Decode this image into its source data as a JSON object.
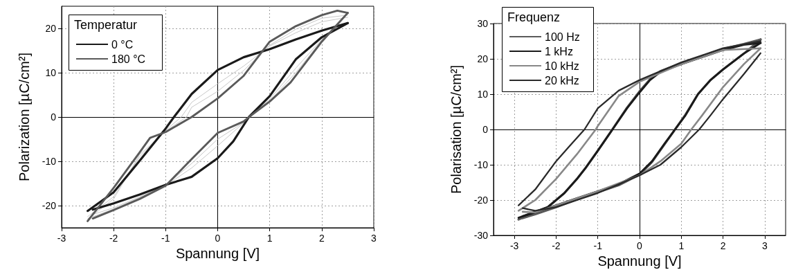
{
  "chart_data": [
    {
      "type": "line",
      "xlabel": "Spannung [V]",
      "ylabel": "Polarization [µC/cm²]",
      "legend_title": "Temperatur",
      "legend": "top left",
      "grid": true,
      "marker": "none",
      "line_style": "solid",
      "xlim": [
        -3,
        3
      ],
      "xticks": [
        -3,
        -2,
        -1,
        0,
        1,
        2,
        3
      ],
      "ylim": [
        -25,
        25
      ],
      "yticks": [
        -20,
        -10,
        0,
        10,
        20
      ],
      "series": [
        {
          "color": "#c8c8c8",
          "x": [
            2.5,
            2,
            1.5,
            1,
            0.5,
            0,
            -0.5,
            -0.7,
            -1,
            -1.5,
            -2,
            -2.5
          ],
          "values": [
            22.5,
            21.5,
            19,
            16,
            11.5,
            7.5,
            3.3,
            0,
            -3,
            -9,
            -18,
            -22.5
          ]
        },
        {
          "color": "#c8c8c8",
          "x": [
            -2.4,
            -2,
            -1.5,
            -1,
            -0.5,
            0,
            0.5,
            0.6,
            1,
            1.5,
            2,
            2.4
          ],
          "values": [
            -22,
            -20.5,
            -18,
            -15.5,
            -11.5,
            -6.5,
            -1.3,
            0,
            4,
            11,
            17.5,
            22
          ]
        },
        {
          "color": "#c8c8c8",
          "x": [
            2.5,
            2,
            1.5,
            1,
            0.5,
            0,
            -0.5,
            -0.6,
            -1,
            -1.5,
            -2,
            -2.5
          ],
          "values": [
            23,
            22.3,
            19.8,
            16.2,
            10.5,
            5.8,
            2.2,
            0,
            -3.2,
            -8.5,
            -18.5,
            -23
          ]
        },
        {
          "color": "#c8c8c8",
          "x": [
            -2.4,
            -2,
            -1.5,
            -1,
            -0.5,
            0,
            0.5,
            0.6,
            1,
            1.5,
            2,
            2.4
          ],
          "values": [
            -22.5,
            -20.8,
            -18.2,
            -15.4,
            -10.5,
            -5,
            -1.2,
            0,
            3.6,
            10,
            17.3,
            22.5
          ]
        },
        {
          "name": "0 °C",
          "color": "#1a1a1a",
          "x": [
            2.5,
            2,
            1.5,
            1,
            0.5,
            0,
            -0.5,
            -0.84,
            -1,
            -1.5,
            -2,
            -2.5
          ],
          "values": [
            21.2,
            19.5,
            17.5,
            15.3,
            13.5,
            10.6,
            5.2,
            0,
            -2.6,
            -9.9,
            -17,
            -21.2
          ]
        },
        {
          "color": "#1a1a1a",
          "x": [
            -2.4,
            -2,
            -1.5,
            -1,
            -0.5,
            0,
            0.3,
            0.6,
            1,
            1.5,
            2,
            2.5
          ],
          "values": [
            -20.9,
            -19.5,
            -17.5,
            -15.3,
            -13.5,
            -9.3,
            -5.5,
            0,
            4.7,
            13,
            18,
            21.2
          ]
        },
        {
          "name": "180 °C",
          "color": "#5a5a5a",
          "x": [
            2.5,
            2.3,
            2,
            1.5,
            1,
            0.5,
            0,
            -0.5,
            -1,
            -1.3,
            -1.5,
            -2,
            -2.5
          ],
          "values": [
            23.5,
            24,
            23,
            20.5,
            17,
            9.3,
            4.2,
            0,
            -3.4,
            -4.7,
            -8,
            -16,
            -23.5
          ]
        },
        {
          "color": "#5a5a5a",
          "x": [
            -2.4,
            -2,
            -1.5,
            -1,
            -0.5,
            0,
            0.5,
            0.6,
            1,
            1.4,
            2,
            2.5
          ],
          "values": [
            -22.9,
            -21,
            -18.5,
            -15.5,
            -9.5,
            -3.6,
            -1,
            0,
            3.5,
            7.8,
            17,
            23.5
          ]
        }
      ]
    },
    {
      "type": "line",
      "xlabel": "Spannung [V]",
      "ylabel": "Polarisation [µC/cm²]",
      "legend_title": "Frequenz",
      "legend": "top left",
      "grid": true,
      "marker": "none",
      "line_style": "solid",
      "xlim": [
        -3.5,
        3.5
      ],
      "xticks": [
        -3,
        -2,
        -1,
        0,
        1,
        2,
        3
      ],
      "ylim": [
        -30,
        30
      ],
      "yticks": [
        -30,
        -20,
        -10,
        0,
        10,
        20,
        30
      ],
      "series": [
        {
          "name": "100 Hz",
          "color": "#5a5a5a",
          "x": [
            2.9,
            2.5,
            2,
            1.5,
            1,
            0.5,
            0.25,
            0,
            -0.3,
            -0.65,
            -1,
            -1.3,
            -1.5,
            -1.8,
            -2.2,
            -2.9
          ],
          "values": [
            25.5,
            24.2,
            22.8,
            20.8,
            18.7,
            16.5,
            14.2,
            10.8,
            6.2,
            0,
            -6,
            -11,
            -14,
            -18,
            -22,
            -25.5
          ]
        },
        {
          "color": "#5a5a5a",
          "x": [
            -2.8,
            -2.5,
            -2,
            -1.5,
            -1,
            -0.5,
            0,
            0.3,
            0.6,
            0.85,
            1.1,
            1.4,
            1.7,
            2,
            2.5,
            2.9
          ],
          "values": [
            -25.1,
            -24,
            -22,
            -19.8,
            -17.8,
            -15.8,
            -12.8,
            -9.2,
            -4.2,
            0,
            4.2,
            10,
            14,
            17,
            21.5,
            25.5
          ]
        },
        {
          "name": "1 kHz",
          "color": "#1a1a1a",
          "x": [
            2.9,
            2.5,
            2,
            1.5,
            1,
            0.5,
            0.25,
            0,
            -0.3,
            -0.65,
            -1,
            -1.3,
            -1.5,
            -1.8,
            -2.2,
            -2.9
          ],
          "values": [
            24.5,
            24,
            22.5,
            20.5,
            18.5,
            16.3,
            14,
            10.5,
            6,
            0,
            -6,
            -11,
            -14,
            -18,
            -22,
            -25
          ]
        },
        {
          "color": "#1a1a1a",
          "x": [
            -2.8,
            -2.5,
            -2,
            -1.5,
            -1,
            -0.5,
            0,
            0.3,
            0.6,
            0.85,
            1.1,
            1.4,
            1.7,
            2,
            2.5,
            2.9
          ],
          "values": [
            -24.6,
            -23.5,
            -21.5,
            -19.5,
            -17.5,
            -15.5,
            -12.5,
            -9,
            -4,
            0,
            4,
            10,
            14,
            17,
            21.5,
            24.5
          ]
        },
        {
          "name": "10 kHz",
          "color": "#888888",
          "x": [
            2.9,
            2,
            1,
            0,
            -0.5,
            -1,
            -1.05,
            -1.5,
            -2,
            -2.5,
            -2.9
          ],
          "values": [
            23,
            22.5,
            18.5,
            13.5,
            9.5,
            1,
            0,
            -7,
            -14,
            -20,
            -23
          ]
        },
        {
          "color": "#888888",
          "x": [
            -2.8,
            -2.5,
            -2,
            -1,
            0,
            0.5,
            1,
            1.24,
            1.5,
            2,
            2.5,
            2.9
          ],
          "values": [
            -23.3,
            -23.5,
            -21.5,
            -17.5,
            -13,
            -9,
            -4,
            0,
            4,
            12,
            18.5,
            23
          ]
        },
        {
          "name": "20 kHz",
          "color": "#2a2a2a",
          "x": [
            2.9,
            2,
            1,
            0,
            -0.5,
            -1,
            -1.32,
            -1.7,
            -2,
            -2.5,
            -2.9
          ],
          "values": [
            25,
            23,
            19,
            14,
            11,
            6,
            0,
            -5,
            -9,
            -17,
            -21.5
          ]
        },
        {
          "color": "#2a2a2a",
          "x": [
            -2.8,
            -2.5,
            -2,
            -1.5,
            -1,
            0,
            0.5,
            1,
            1.43,
            1.7,
            2,
            2.5,
            2.9
          ],
          "values": [
            -22.3,
            -23,
            -22,
            -20,
            -18,
            -13,
            -10,
            -5,
            0,
            4,
            8.6,
            15.7,
            21.6
          ]
        }
      ]
    }
  ]
}
